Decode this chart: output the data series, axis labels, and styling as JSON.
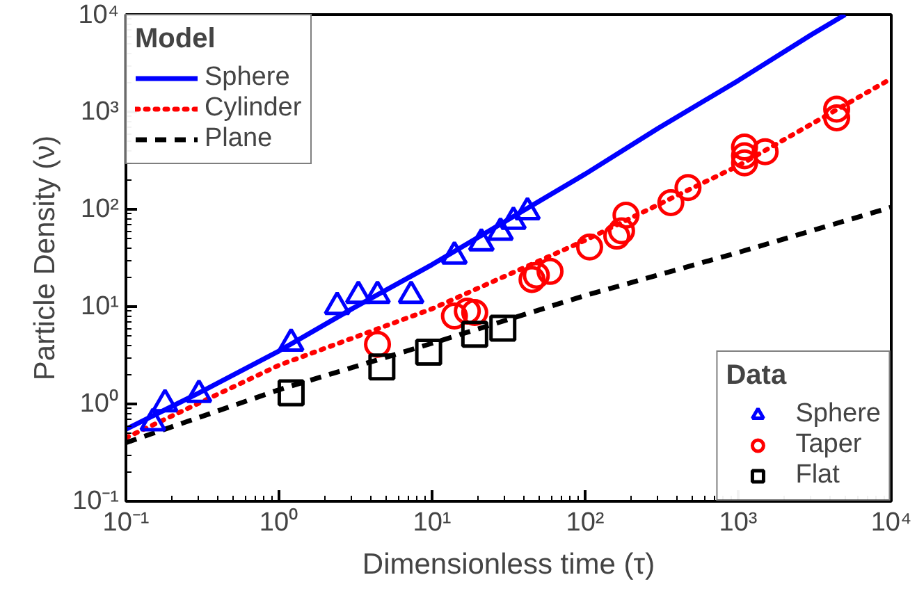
{
  "chart_data": {
    "type": "line",
    "xlabel": "Dimensionless time (τ)",
    "ylabel": "Particle Density (ν)",
    "log": "xy",
    "xlim": [
      0.1,
      10000
    ],
    "ylim": [
      0.1,
      10000
    ],
    "xticks": [
      {
        "value": 0.1,
        "label": "10⁻¹"
      },
      {
        "value": 1,
        "label": "10⁰"
      },
      {
        "value": 10,
        "label": "10¹"
      },
      {
        "value": 100,
        "label": "10²"
      },
      {
        "value": 1000,
        "label": "10³"
      },
      {
        "value": 10000,
        "label": "10⁴"
      }
    ],
    "yticks": [
      {
        "value": 0.1,
        "label": "10⁻¹"
      },
      {
        "value": 1,
        "label": "10⁰"
      },
      {
        "value": 10,
        "label": "10¹"
      },
      {
        "value": 100,
        "label": "10²"
      },
      {
        "value": 1000,
        "label": "10³"
      },
      {
        "value": 10000,
        "label": "10⁴"
      }
    ],
    "grid": false,
    "legend": [
      "top left",
      "bottom right"
    ],
    "legend_title": [
      "Model",
      "Data"
    ],
    "series": [
      {
        "name": "Sphere",
        "line_style": "solid",
        "color": "#0000ff",
        "x": [
          0.1,
          0.3,
          1,
          3,
          10,
          30,
          100,
          300,
          1000,
          3000,
          5000
        ],
        "values": [
          0.55,
          1.3,
          3.5,
          9.5,
          27,
          75,
          230,
          680,
          2100,
          6200,
          10000
        ]
      },
      {
        "name": "Cylinder",
        "line_style": "dotted",
        "color": "#ff0000",
        "x": [
          0.1,
          1,
          10,
          100,
          1000,
          10000
        ],
        "values": [
          0.45,
          2.5,
          9.5,
          48,
          280,
          2200
        ]
      },
      {
        "name": "Plane",
        "line_style": "dashed",
        "color": "#000000",
        "x": [
          0.1,
          1,
          10,
          100,
          1000,
          10000
        ],
        "values": [
          0.4,
          1.4,
          4.2,
          13,
          36,
          105
        ]
      },
      {
        "name": "Sphere",
        "type": "scatter",
        "marker": "triangle",
        "color": "#0000ff",
        "x": [
          0.15,
          0.18,
          0.3,
          1.2,
          2.4,
          3.3,
          4.4,
          7.3,
          14,
          21,
          28,
          34,
          42
        ],
        "values": [
          0.64,
          1,
          1.25,
          4.2,
          10,
          13,
          13,
          13,
          33,
          45,
          58,
          75,
          94
        ]
      },
      {
        "name": "Taper",
        "type": "scatter",
        "marker": "circle",
        "color": "#ff0000",
        "x": [
          4.4,
          14,
          17,
          19,
          45,
          48,
          59,
          107,
          161,
          173,
          185,
          363,
          470,
          1100,
          1100,
          1100,
          1500,
          4400,
          4400
        ],
        "values": [
          4.1,
          8,
          9,
          8.7,
          19,
          21,
          23,
          41,
          53,
          60,
          87,
          117,
          167,
          300,
          355,
          435,
          390,
          870,
          1070
        ]
      },
      {
        "name": "Flat",
        "type": "scatter",
        "marker": "square",
        "color": "#000000",
        "x": [
          1.2,
          4.7,
          9.5,
          19,
          29
        ],
        "values": [
          1.3,
          2.4,
          3.4,
          5.2,
          6
        ]
      }
    ]
  }
}
